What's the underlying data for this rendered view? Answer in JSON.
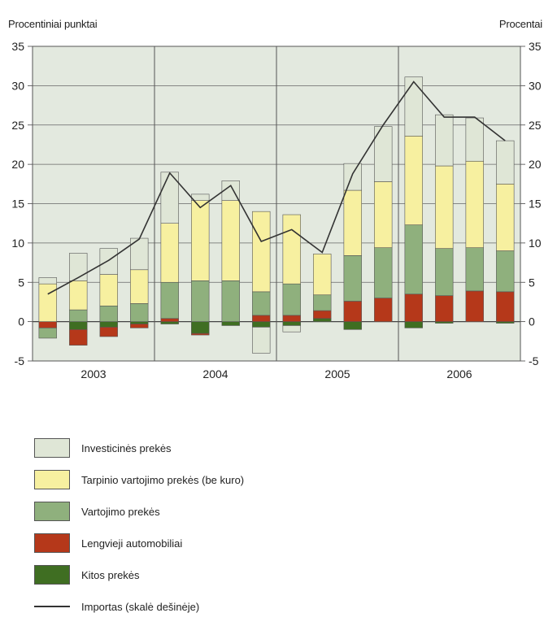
{
  "chart_data": {
    "type": "bar",
    "subtype": "stacked-bar-with-line",
    "ylabel_left": "Procentiniai punktai",
    "ylabel_right": "Procentai",
    "ylim": [
      -5,
      35
    ],
    "ylim_right": [
      -5,
      35
    ],
    "yticks": [
      "35",
      "30",
      "25",
      "20",
      "15",
      "10",
      "5",
      "0",
      "-5"
    ],
    "year_labels": [
      "2003",
      "2004",
      "2005",
      "2006"
    ],
    "categories": [
      "2003 Q1",
      "2003 Q2",
      "2003 Q3",
      "2003 Q4",
      "2004 Q1",
      "2004 Q2",
      "2004 Q3",
      "2004 Q4",
      "2005 Q1",
      "2005 Q2",
      "2005 Q3",
      "2005 Q4",
      "2006 Q1",
      "2006 Q2",
      "2006 Q3",
      "2006 Q4"
    ],
    "series": [
      {
        "name": "Investicinės prekės",
        "color": "#dfe6d6",
        "values": [
          0.8,
          3.5,
          3.3,
          4.0,
          6.5,
          0.8,
          2.5,
          -3.3,
          -0.8,
          0.0,
          3.4,
          7.0,
          7.5,
          6.5,
          5.5,
          5.5
        ]
      },
      {
        "name": "Tarpinio vartojimo prekės (be kuro)",
        "color": "#f7f0a0",
        "values": [
          4.8,
          3.7,
          4.0,
          4.3,
          7.5,
          10.2,
          10.2,
          10.2,
          8.8,
          5.2,
          8.3,
          8.4,
          11.3,
          10.5,
          11.0,
          8.5
        ]
      },
      {
        "name": "Vartojimo prekės",
        "color": "#8fb07d",
        "values": [
          -1.3,
          1.5,
          2.0,
          2.3,
          4.6,
          5.2,
          5.2,
          3.0,
          4.0,
          2.0,
          5.8,
          6.4,
          8.8,
          6.0,
          5.5,
          5.2
        ]
      },
      {
        "name": "Lengvieji automobiliai",
        "color": "#b5381a",
        "values": [
          -0.8,
          -2.0,
          -1.2,
          -0.5,
          0.4,
          -0.2,
          0.0,
          0.8,
          0.8,
          1.0,
          2.6,
          3.0,
          3.5,
          3.3,
          3.9,
          3.8
        ]
      },
      {
        "name": "Kitos prekės",
        "color": "#3f6e22",
        "values": [
          0.0,
          -1.0,
          -0.7,
          -0.3,
          -0.3,
          -1.5,
          -0.5,
          -0.7,
          -0.5,
          0.4,
          -1.0,
          0.0,
          -0.8,
          -0.2,
          0.0,
          -0.2
        ]
      }
    ],
    "line": {
      "name": "Importas (skalė dešinėje)",
      "color": "#333333",
      "values": [
        3.5,
        5.6,
        7.8,
        10.5,
        18.9,
        14.5,
        17.3,
        10.2,
        11.7,
        8.8,
        18.8,
        25.0,
        30.5,
        26.0,
        26.0,
        23.0
      ]
    },
    "grid": true,
    "legend_position": "bottom"
  }
}
